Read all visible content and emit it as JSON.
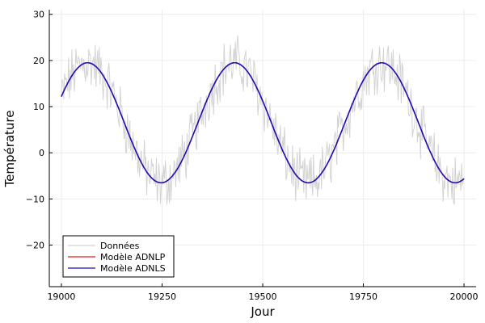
{
  "chart_data": {
    "type": "line",
    "title": "",
    "xlabel": "Jour",
    "ylabel": "Température",
    "xlim": [
      18970,
      20030
    ],
    "ylim": [
      -29,
      31
    ],
    "xticks": [
      19000,
      19250,
      19500,
      19750,
      20000
    ],
    "yticks": [
      -20,
      -10,
      0,
      10,
      20,
      30
    ],
    "grid": true,
    "legend_position": "bottom-left",
    "series": [
      {
        "name": "Données",
        "color": "#d3d3d3",
        "kind": "noisy",
        "x_start": 19000,
        "x_end": 20000,
        "model": {
          "mean": 6.5,
          "amplitude": 13.0,
          "period": 365.25,
          "peak_day": 19065
        },
        "noise_amplitude": 5.0,
        "note_values": "daily observations fluctuating around the seasonal model"
      },
      {
        "name": "Modèle ADNLP",
        "color": "#e31a1c",
        "kind": "model",
        "x_start": 19000,
        "x_end": 20000,
        "model": {
          "mean": 6.5,
          "amplitude": 13.0,
          "period": 365.25,
          "peak_day": 19065
        }
      },
      {
        "name": "Modèle ADNLS",
        "color": "#1a0dbf",
        "kind": "model",
        "x_start": 19000,
        "x_end": 20000,
        "model": {
          "mean": 6.5,
          "amplitude": 13.0,
          "period": 365.25,
          "peak_day": 19065
        }
      }
    ]
  }
}
